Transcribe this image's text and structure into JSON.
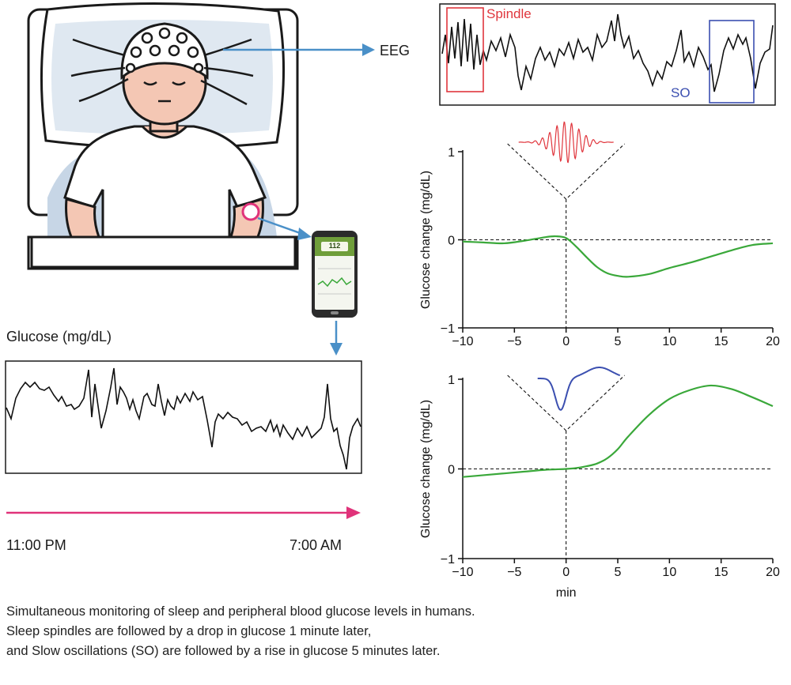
{
  "eeg": {
    "label": "EEG",
    "spindle_label": "Spindle",
    "so_label": "SO",
    "spindle_color": "#e0363d",
    "so_color": "#3b4fb0"
  },
  "phone": {
    "reading": "112"
  },
  "glucose_trace": {
    "title": "Glucose (mg/dL)"
  },
  "timeline": {
    "start": "11:00 PM",
    "end": "7:00 AM",
    "color": "#e0337a"
  },
  "colors": {
    "arrow": "#4a90c8",
    "curve": "#3aa83a"
  },
  "chart_data": [
    {
      "type": "line",
      "inset_icon": "spindle-waveform",
      "series": [
        {
          "x": [
            -10,
            -8,
            -6,
            -4,
            -2,
            -1,
            0,
            1,
            2,
            3,
            4,
            5,
            6,
            8,
            10,
            12,
            14,
            16,
            18,
            20
          ],
          "y": [
            -0.02,
            -0.03,
            -0.04,
            -0.01,
            0.03,
            0.04,
            0.02,
            -0.08,
            -0.2,
            -0.31,
            -0.38,
            -0.41,
            -0.42,
            -0.39,
            -0.32,
            -0.26,
            -0.19,
            -0.12,
            -0.06,
            -0.04
          ]
        }
      ],
      "xlabel": "",
      "ylabel": "Glucose change (mg/dL)",
      "xlim": [
        -10,
        20
      ],
      "ylim": [
        -1,
        1
      ],
      "xticks": [
        "−10",
        "−5",
        "0",
        "5",
        "10",
        "15",
        "20"
      ],
      "yticks": [
        "1",
        "0",
        "−1"
      ],
      "grid": false
    },
    {
      "type": "line",
      "inset_icon": "slow-oscillation-waveform",
      "series": [
        {
          "x": [
            -10,
            -8,
            -6,
            -4,
            -2,
            0,
            1,
            2,
            3,
            4,
            5,
            6,
            8,
            10,
            12,
            14,
            16,
            18,
            20
          ],
          "y": [
            -0.09,
            -0.07,
            -0.05,
            -0.03,
            -0.01,
            0.0,
            0.01,
            0.03,
            0.06,
            0.12,
            0.22,
            0.36,
            0.6,
            0.78,
            0.88,
            0.93,
            0.89,
            0.8,
            0.7
          ]
        }
      ],
      "xlabel": "min",
      "ylabel": "Glucose change (mg/dL)",
      "xlim": [
        -10,
        20
      ],
      "ylim": [
        -1,
        1
      ],
      "xticks": [
        "−10",
        "−5",
        "0",
        "5",
        "10",
        "15",
        "20"
      ],
      "yticks": [
        "1",
        "0",
        "−1"
      ],
      "grid": false
    }
  ],
  "caption": {
    "line1": "Simultaneous monitoring of sleep and peripheral blood glucose levels in humans.",
    "line2": "Sleep spindles are followed by a drop in glucose 1 minute later,",
    "line3": "and Slow oscillations (SO) are followed by a rise in glucose 5 minutes later."
  }
}
